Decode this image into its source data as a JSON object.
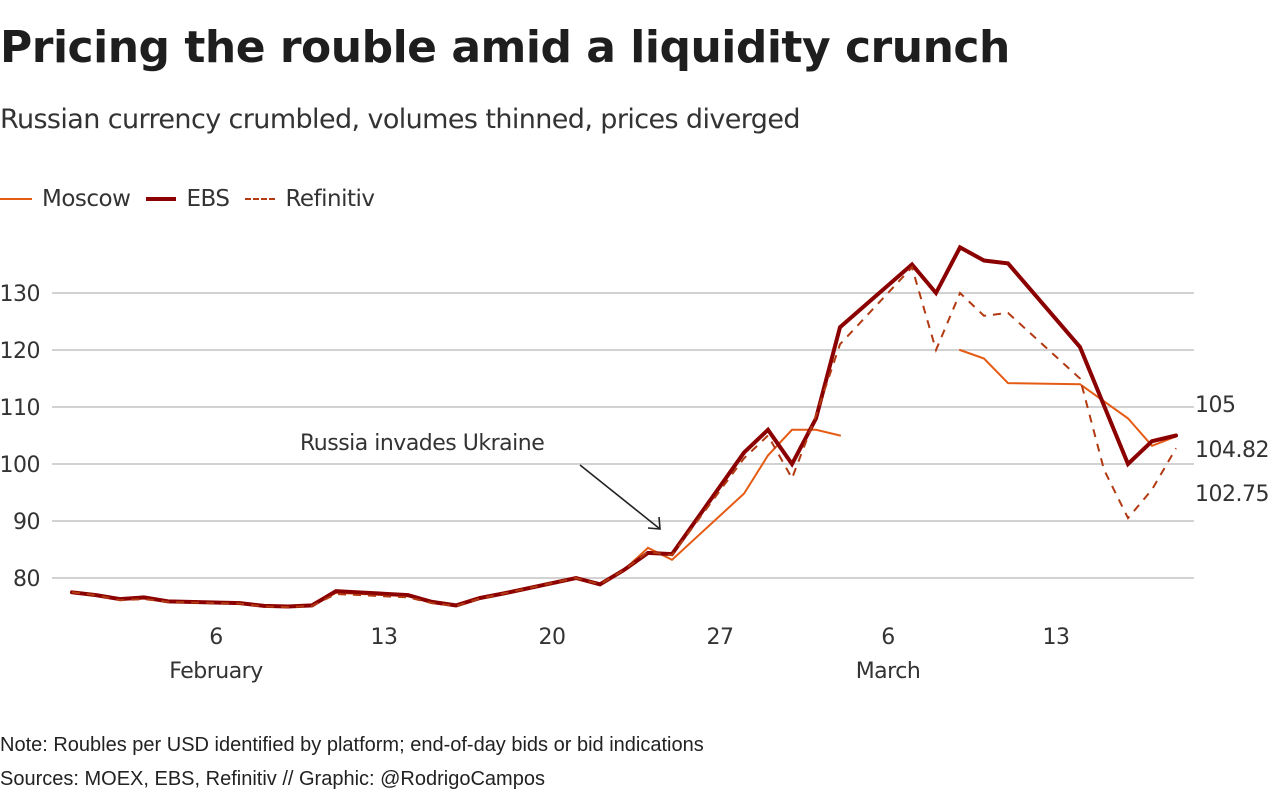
{
  "header": {
    "title": "Pricing the rouble amid a liquidity crunch",
    "subtitle": "Russian currency crumbled, volumes thinned, prices diverged"
  },
  "legend": [
    {
      "name": "Moscow",
      "color": "#e55b13",
      "style": "solid-thin"
    },
    {
      "name": "EBS",
      "color": "#8b0000",
      "style": "solid-thick"
    },
    {
      "name": "Refinitiv",
      "color": "#b23a12",
      "style": "dashed"
    }
  ],
  "footer": {
    "note": "Note: Roubles per USD identified by platform; end-of-day bids or bid indications",
    "sources": "Sources: MOEX, EBS, Refinitiv // Graphic: @RodrigoCampos"
  },
  "chart_data": {
    "type": "line",
    "title": "Pricing the rouble amid a liquidity crunch",
    "subtitle": "Russian currency crumbled, volumes thinned, prices diverged",
    "xlabel": "",
    "ylabel": "Roubles per USD",
    "ylim": [
      72,
      140
    ],
    "yticks": [
      80,
      90,
      100,
      110,
      120,
      130
    ],
    "xticks": [
      {
        "day": 0,
        "label": "6",
        "month": "February"
      },
      {
        "day": 7,
        "label": "13",
        "month": ""
      },
      {
        "day": 14,
        "label": "20",
        "month": ""
      },
      {
        "day": 21,
        "label": "27",
        "month": ""
      },
      {
        "day": 28,
        "label": "6",
        "month": "March"
      },
      {
        "day": 35,
        "label": "13",
        "month": ""
      }
    ],
    "x_unit": "days since 6 February",
    "grid": "horizontal",
    "legend_position": "top-left",
    "annotation": {
      "text": "Russia invades Ukraine",
      "day": 18
    },
    "end_labels": [
      "105",
      "104.82",
      "102.75"
    ],
    "series": [
      {
        "name": "Moscow",
        "color": "#e55b13",
        "segments": [
          {
            "x": [
              -6,
              -5,
              -4,
              -3,
              -2,
              1,
              2,
              3,
              4,
              5,
              8,
              9,
              10,
              11,
              12,
              15,
              16,
              17,
              18,
              19,
              22,
              23,
              24,
              25,
              26
            ],
            "y": [
              77.5,
              77.0,
              76.2,
              76.4,
              75.8,
              75.5,
              75.0,
              74.9,
              75.1,
              77.4,
              76.8,
              75.6,
              75.1,
              76.4,
              77.3,
              80.0,
              78.9,
              81.4,
              85.3,
              83.2,
              94.8,
              101.5,
              106.0,
              106.0,
              105.0
            ]
          },
          {
            "x": [
              31,
              32,
              33,
              36,
              37,
              38,
              39,
              40
            ],
            "y": [
              120.0,
              118.5,
              114.2,
              114.0,
              111.0,
              108.0,
              103.2,
              104.82
            ]
          }
        ]
      },
      {
        "name": "EBS",
        "color": "#8b0000",
        "segments": [
          {
            "x": [
              -6,
              -5,
              -4,
              -3,
              -2,
              1,
              2,
              3,
              4,
              5,
              8,
              9,
              10,
              11,
              12,
              15,
              16,
              17,
              18,
              19,
              22,
              23,
              24,
              25,
              26,
              29,
              30,
              31,
              32,
              33,
              36,
              38,
              39,
              40
            ],
            "y": [
              77.5,
              77.0,
              76.3,
              76.6,
              75.9,
              75.6,
              75.1,
              75.0,
              75.2,
              77.7,
              77.0,
              75.8,
              75.2,
              76.5,
              77.3,
              80.0,
              78.9,
              81.4,
              84.4,
              84.2,
              102.0,
              106.0,
              100.0,
              108.0,
              124.0,
              135.0,
              130.0,
              138.0,
              135.7,
              135.2,
              120.5,
              100.0,
              104.0,
              105.0
            ]
          }
        ]
      },
      {
        "name": "Refinitiv",
        "color": "#b23a12",
        "segments": [
          {
            "x": [
              -6,
              -5,
              -4,
              -3,
              -2,
              1,
              2,
              3,
              4,
              5,
              8,
              9,
              10,
              11,
              12,
              15,
              16,
              17,
              18,
              19,
              22,
              23,
              24,
              25,
              26,
              29,
              30,
              31,
              32,
              33,
              36,
              37,
              38,
              39,
              40
            ],
            "y": [
              77.5,
              77.0,
              76.1,
              76.3,
              75.8,
              75.5,
              75.0,
              74.9,
              75.1,
              77.2,
              76.6,
              75.6,
              75.1,
              76.4,
              77.3,
              80.0,
              78.9,
              81.4,
              84.6,
              84.0,
              101.0,
              105.0,
              97.5,
              108.5,
              121.0,
              134.5,
              120.0,
              130.0,
              126.0,
              126.5,
              115.0,
              99.0,
              90.5,
              95.5,
              102.75
            ]
          }
        ]
      }
    ]
  }
}
